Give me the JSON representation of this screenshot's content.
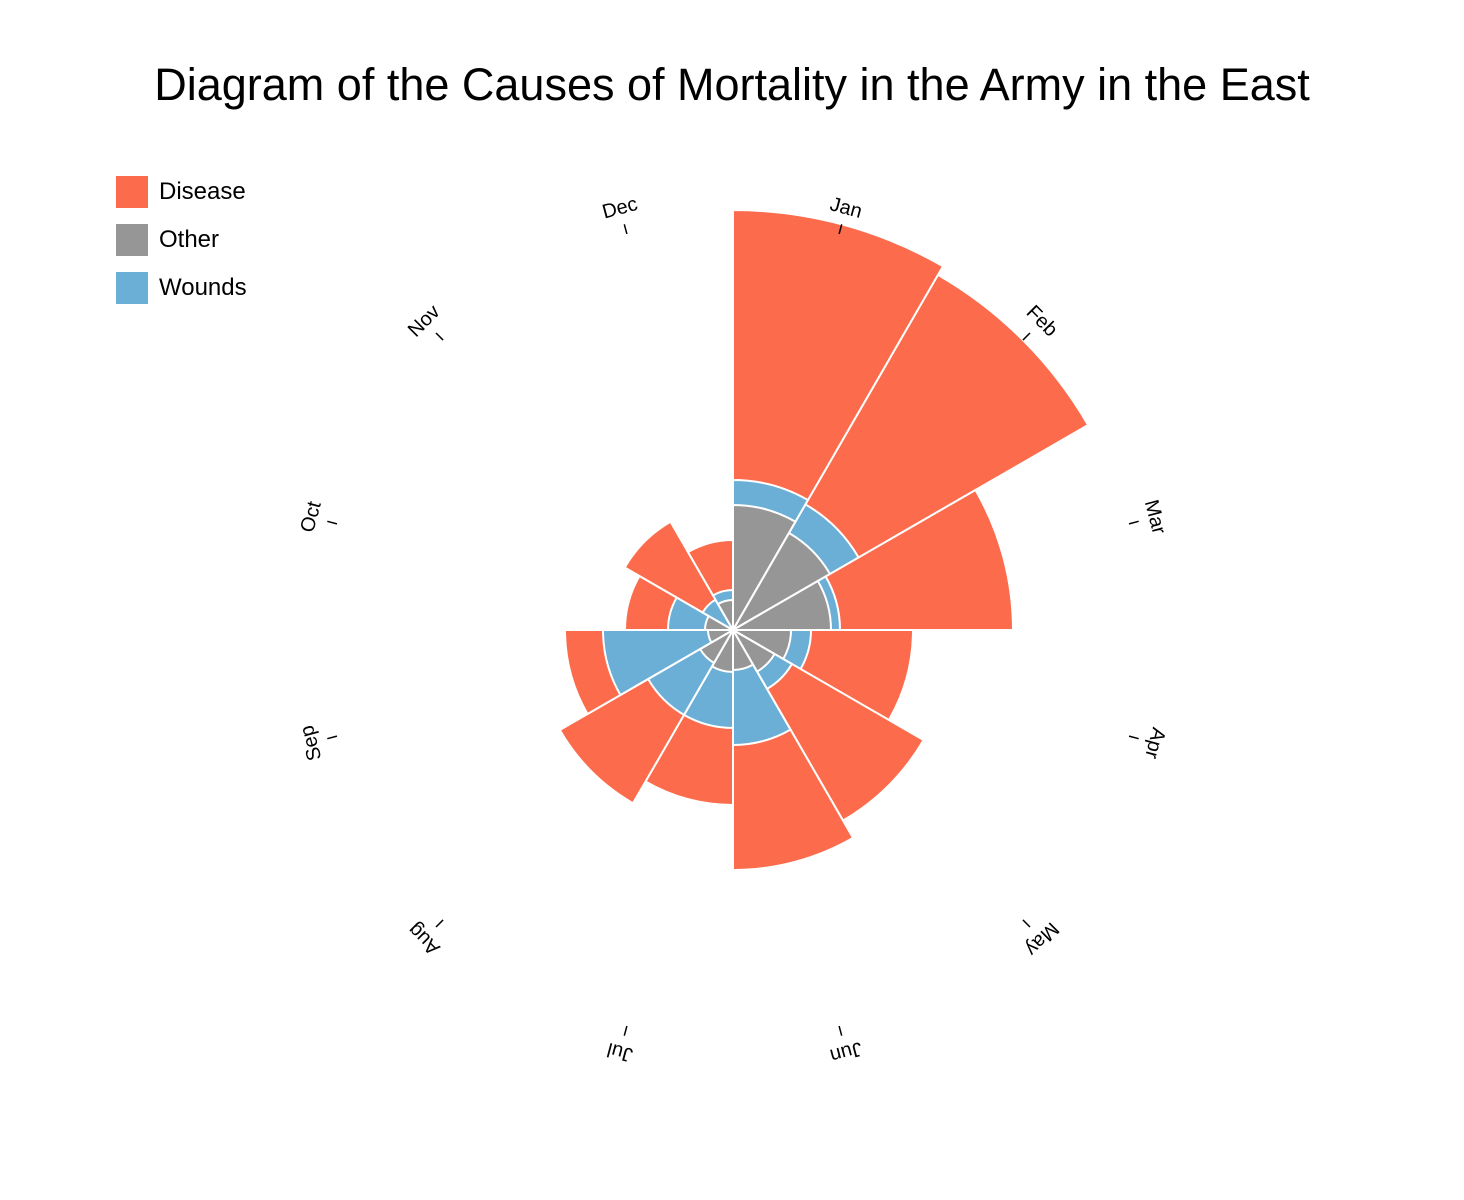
{
  "title": "Diagram of the Causes of Mortality in the Army in the East",
  "legend": [
    {
      "label": "Disease",
      "color": "#fc6b4c"
    },
    {
      "label": "Other",
      "color": "#969696"
    },
    {
      "label": "Wounds",
      "color": "#6baed6"
    }
  ],
  "chart_data": {
    "type": "polar-area",
    "categories": [
      "Jan",
      "Feb",
      "Mar",
      "Apr",
      "May",
      "Jun",
      "Jul",
      "Aug",
      "Sep",
      "Oct",
      "Nov",
      "Dec"
    ],
    "start_angle_deg": 0,
    "direction": "clockwise",
    "stacking": "overlaid",
    "series": [
      {
        "name": "Disease",
        "color": "#fc6b4c",
        "values": [
          420,
          410,
          280,
          180,
          220,
          240,
          175,
          200,
          168,
          108,
          125,
          90
        ]
      },
      {
        "name": "Other",
        "color": "#969696",
        "values": [
          125,
          112,
          98,
          58,
          48,
          40,
          42,
          38,
          25,
          28,
          35,
          30
        ]
      },
      {
        "name": "Wounds",
        "color": "#6baed6",
        "values": [
          150,
          145,
          107,
          78,
          68,
          115,
          98,
          98,
          130,
          65,
          35,
          40
        ]
      }
    ],
    "grid": false,
    "legend_position": "top-left"
  }
}
